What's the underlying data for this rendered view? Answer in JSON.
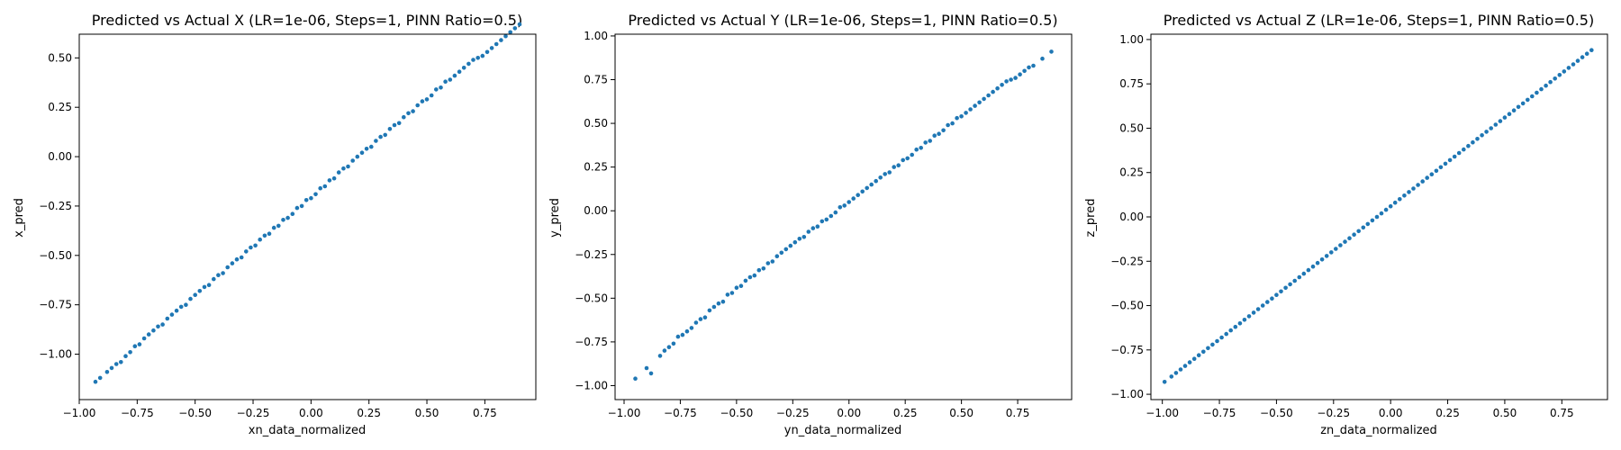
{
  "marker_color": "#1f77b4",
  "chart_data": [
    {
      "type": "scatter",
      "title": "Predicted vs Actual X (LR=1e-06, Steps=1, PINN Ratio=0.5)",
      "xlabel": "xn_data_normalized",
      "ylabel": "x_pred",
      "xlim": [
        -1.0,
        0.97
      ],
      "ylim": [
        -1.23,
        0.62
      ],
      "xticks": [
        -1.0,
        -0.75,
        -0.5,
        -0.25,
        0.0,
        0.25,
        0.5,
        0.75
      ],
      "xtick_labels": [
        "−1.00",
        "−0.75",
        "−0.50",
        "−0.25",
        "0.00",
        "0.25",
        "0.50",
        "0.75"
      ],
      "yticks": [
        -1.0,
        -0.75,
        -0.5,
        -0.25,
        0.0,
        0.25,
        0.5
      ],
      "ytick_labels": [
        "−1.00",
        "−0.75",
        "−0.50",
        "−0.25",
        "0.00",
        "0.25",
        "0.50"
      ],
      "grid": false,
      "x": [
        -0.93,
        -0.91,
        -0.88,
        -0.86,
        -0.84,
        -0.82,
        -0.8,
        -0.78,
        -0.76,
        -0.74,
        -0.72,
        -0.7,
        -0.68,
        -0.66,
        -0.64,
        -0.62,
        -0.6,
        -0.58,
        -0.56,
        -0.54,
        -0.52,
        -0.5,
        -0.48,
        -0.46,
        -0.44,
        -0.42,
        -0.4,
        -0.38,
        -0.36,
        -0.34,
        -0.32,
        -0.3,
        -0.28,
        -0.26,
        -0.24,
        -0.22,
        -0.2,
        -0.18,
        -0.16,
        -0.14,
        -0.12,
        -0.1,
        -0.08,
        -0.06,
        -0.04,
        -0.02,
        0.0,
        0.02,
        0.04,
        0.06,
        0.08,
        0.1,
        0.12,
        0.14,
        0.16,
        0.18,
        0.2,
        0.22,
        0.24,
        0.26,
        0.28,
        0.3,
        0.32,
        0.34,
        0.36,
        0.38,
        0.4,
        0.42,
        0.44,
        0.46,
        0.48,
        0.5,
        0.52,
        0.54,
        0.56,
        0.58,
        0.6,
        0.62,
        0.64,
        0.66,
        0.68,
        0.7,
        0.72,
        0.74,
        0.76,
        0.78,
        0.8,
        0.82,
        0.84,
        0.86,
        0.88,
        0.9
      ],
      "y": [
        -1.14,
        -1.12,
        -1.09,
        -1.07,
        -1.05,
        -1.04,
        -1.01,
        -0.99,
        -0.96,
        -0.95,
        -0.92,
        -0.9,
        -0.88,
        -0.86,
        -0.85,
        -0.82,
        -0.8,
        -0.78,
        -0.76,
        -0.75,
        -0.72,
        -0.7,
        -0.68,
        -0.66,
        -0.65,
        -0.62,
        -0.6,
        -0.59,
        -0.56,
        -0.54,
        -0.52,
        -0.51,
        -0.48,
        -0.46,
        -0.45,
        -0.42,
        -0.4,
        -0.39,
        -0.36,
        -0.35,
        -0.32,
        -0.31,
        -0.29,
        -0.26,
        -0.25,
        -0.22,
        -0.21,
        -0.19,
        -0.16,
        -0.15,
        -0.12,
        -0.11,
        -0.08,
        -0.06,
        -0.05,
        -0.02,
        -0.0,
        0.02,
        0.04,
        0.05,
        0.08,
        0.1,
        0.11,
        0.14,
        0.16,
        0.17,
        0.2,
        0.22,
        0.23,
        0.26,
        0.28,
        0.29,
        0.31,
        0.34,
        0.35,
        0.38,
        0.39,
        0.41,
        0.43,
        0.45,
        0.47,
        0.49,
        0.5,
        0.51,
        0.53,
        0.55,
        0.57,
        0.59,
        0.61,
        0.63,
        0.65,
        0.67
      ]
    },
    {
      "type": "scatter",
      "title": "Predicted vs Actual Y (LR=1e-06, Steps=1, PINN Ratio=0.5)",
      "xlabel": "yn_data_normalized",
      "ylabel": "y_pred",
      "xlim": [
        -1.04,
        0.99
      ],
      "ylim": [
        -1.08,
        1.01
      ],
      "xticks": [
        -1.0,
        -0.75,
        -0.5,
        -0.25,
        0.0,
        0.25,
        0.5,
        0.75
      ],
      "xtick_labels": [
        "−1.00",
        "−0.75",
        "−0.50",
        "−0.25",
        "0.00",
        "0.25",
        "0.50",
        "0.75"
      ],
      "yticks": [
        -1.0,
        -0.75,
        -0.5,
        -0.25,
        0.0,
        0.25,
        0.5,
        0.75,
        1.0
      ],
      "ytick_labels": [
        "−1.00",
        "−0.75",
        "−0.50",
        "−0.25",
        "0.00",
        "0.25",
        "0.50",
        "0.75",
        "1.00"
      ],
      "grid": false,
      "x": [
        -0.95,
        -0.9,
        -0.88,
        -0.84,
        -0.82,
        -0.8,
        -0.78,
        -0.76,
        -0.74,
        -0.72,
        -0.7,
        -0.68,
        -0.66,
        -0.64,
        -0.62,
        -0.6,
        -0.58,
        -0.56,
        -0.54,
        -0.52,
        -0.5,
        -0.48,
        -0.46,
        -0.44,
        -0.42,
        -0.4,
        -0.38,
        -0.36,
        -0.34,
        -0.32,
        -0.3,
        -0.28,
        -0.26,
        -0.24,
        -0.22,
        -0.2,
        -0.18,
        -0.16,
        -0.14,
        -0.12,
        -0.1,
        -0.08,
        -0.06,
        -0.04,
        -0.02,
        0.0,
        0.02,
        0.04,
        0.06,
        0.08,
        0.1,
        0.12,
        0.14,
        0.16,
        0.18,
        0.2,
        0.22,
        0.24,
        0.26,
        0.28,
        0.3,
        0.32,
        0.34,
        0.36,
        0.38,
        0.4,
        0.42,
        0.44,
        0.46,
        0.48,
        0.5,
        0.52,
        0.54,
        0.56,
        0.58,
        0.6,
        0.62,
        0.64,
        0.66,
        0.68,
        0.7,
        0.72,
        0.74,
        0.76,
        0.78,
        0.8,
        0.82,
        0.86,
        0.9
      ],
      "y": [
        -0.96,
        -0.9,
        -0.93,
        -0.83,
        -0.8,
        -0.78,
        -0.76,
        -0.72,
        -0.71,
        -0.69,
        -0.67,
        -0.64,
        -0.62,
        -0.61,
        -0.57,
        -0.55,
        -0.53,
        -0.52,
        -0.48,
        -0.47,
        -0.44,
        -0.43,
        -0.4,
        -0.38,
        -0.37,
        -0.34,
        -0.33,
        -0.3,
        -0.29,
        -0.26,
        -0.24,
        -0.22,
        -0.2,
        -0.18,
        -0.16,
        -0.15,
        -0.12,
        -0.1,
        -0.09,
        -0.06,
        -0.05,
        -0.03,
        -0.01,
        0.02,
        0.03,
        0.05,
        0.07,
        0.09,
        0.11,
        0.13,
        0.15,
        0.17,
        0.19,
        0.21,
        0.22,
        0.25,
        0.26,
        0.29,
        0.3,
        0.32,
        0.35,
        0.36,
        0.39,
        0.4,
        0.43,
        0.44,
        0.46,
        0.49,
        0.5,
        0.53,
        0.54,
        0.56,
        0.58,
        0.6,
        0.62,
        0.64,
        0.66,
        0.68,
        0.7,
        0.72,
        0.74,
        0.75,
        0.76,
        0.78,
        0.8,
        0.82,
        0.83,
        0.87,
        0.91
      ]
    },
    {
      "type": "scatter",
      "title": "Predicted vs Actual Z (LR=1e-06, Steps=1, PINN Ratio=0.5)",
      "xlabel": "zn_data_normalized",
      "ylabel": "z_pred",
      "xlim": [
        -1.05,
        0.95
      ],
      "ylim": [
        -1.03,
        1.03
      ],
      "xticks": [
        -1.0,
        -0.75,
        -0.5,
        -0.25,
        0.0,
        0.25,
        0.5,
        0.75
      ],
      "xtick_labels": [
        "−1.00",
        "−0.75",
        "−0.50",
        "−0.25",
        "0.00",
        "0.25",
        "0.50",
        "0.75"
      ],
      "yticks": [
        -1.0,
        -0.75,
        -0.5,
        -0.25,
        0.0,
        0.25,
        0.5,
        0.75,
        1.0
      ],
      "ytick_labels": [
        "−1.00",
        "−0.75",
        "−0.50",
        "−0.25",
        "0.00",
        "0.25",
        "0.50",
        "0.75",
        "1.00"
      ],
      "grid": false,
      "x": [
        -0.99,
        -0.96,
        -0.94,
        -0.92,
        -0.9,
        -0.88,
        -0.86,
        -0.84,
        -0.82,
        -0.8,
        -0.78,
        -0.76,
        -0.74,
        -0.72,
        -0.7,
        -0.68,
        -0.66,
        -0.64,
        -0.62,
        -0.6,
        -0.58,
        -0.56,
        -0.54,
        -0.52,
        -0.5,
        -0.48,
        -0.46,
        -0.44,
        -0.42,
        -0.4,
        -0.38,
        -0.36,
        -0.34,
        -0.32,
        -0.3,
        -0.28,
        -0.26,
        -0.24,
        -0.22,
        -0.2,
        -0.18,
        -0.16,
        -0.14,
        -0.12,
        -0.1,
        -0.08,
        -0.06,
        -0.04,
        -0.02,
        0.0,
        0.02,
        0.04,
        0.06,
        0.08,
        0.1,
        0.12,
        0.14,
        0.16,
        0.18,
        0.2,
        0.22,
        0.24,
        0.26,
        0.28,
        0.3,
        0.32,
        0.34,
        0.36,
        0.38,
        0.4,
        0.42,
        0.44,
        0.46,
        0.48,
        0.5,
        0.52,
        0.54,
        0.56,
        0.58,
        0.6,
        0.62,
        0.64,
        0.66,
        0.68,
        0.7,
        0.72,
        0.74,
        0.76,
        0.78,
        0.8,
        0.82,
        0.84,
        0.86,
        0.88
      ],
      "y": [
        -0.93,
        -0.9,
        -0.88,
        -0.86,
        -0.84,
        -0.82,
        -0.8,
        -0.78,
        -0.76,
        -0.74,
        -0.72,
        -0.7,
        -0.68,
        -0.66,
        -0.64,
        -0.62,
        -0.6,
        -0.58,
        -0.56,
        -0.54,
        -0.52,
        -0.5,
        -0.48,
        -0.46,
        -0.44,
        -0.42,
        -0.4,
        -0.38,
        -0.36,
        -0.34,
        -0.32,
        -0.3,
        -0.28,
        -0.26,
        -0.24,
        -0.22,
        -0.2,
        -0.18,
        -0.16,
        -0.14,
        -0.12,
        -0.1,
        -0.08,
        -0.06,
        -0.04,
        -0.02,
        0.0,
        0.02,
        0.04,
        0.06,
        0.08,
        0.1,
        0.12,
        0.14,
        0.16,
        0.18,
        0.2,
        0.22,
        0.24,
        0.26,
        0.28,
        0.3,
        0.32,
        0.34,
        0.36,
        0.38,
        0.4,
        0.42,
        0.44,
        0.46,
        0.48,
        0.5,
        0.52,
        0.54,
        0.56,
        0.58,
        0.6,
        0.62,
        0.64,
        0.66,
        0.68,
        0.7,
        0.72,
        0.74,
        0.76,
        0.78,
        0.8,
        0.82,
        0.84,
        0.86,
        0.88,
        0.9,
        0.92,
        0.94
      ]
    }
  ]
}
